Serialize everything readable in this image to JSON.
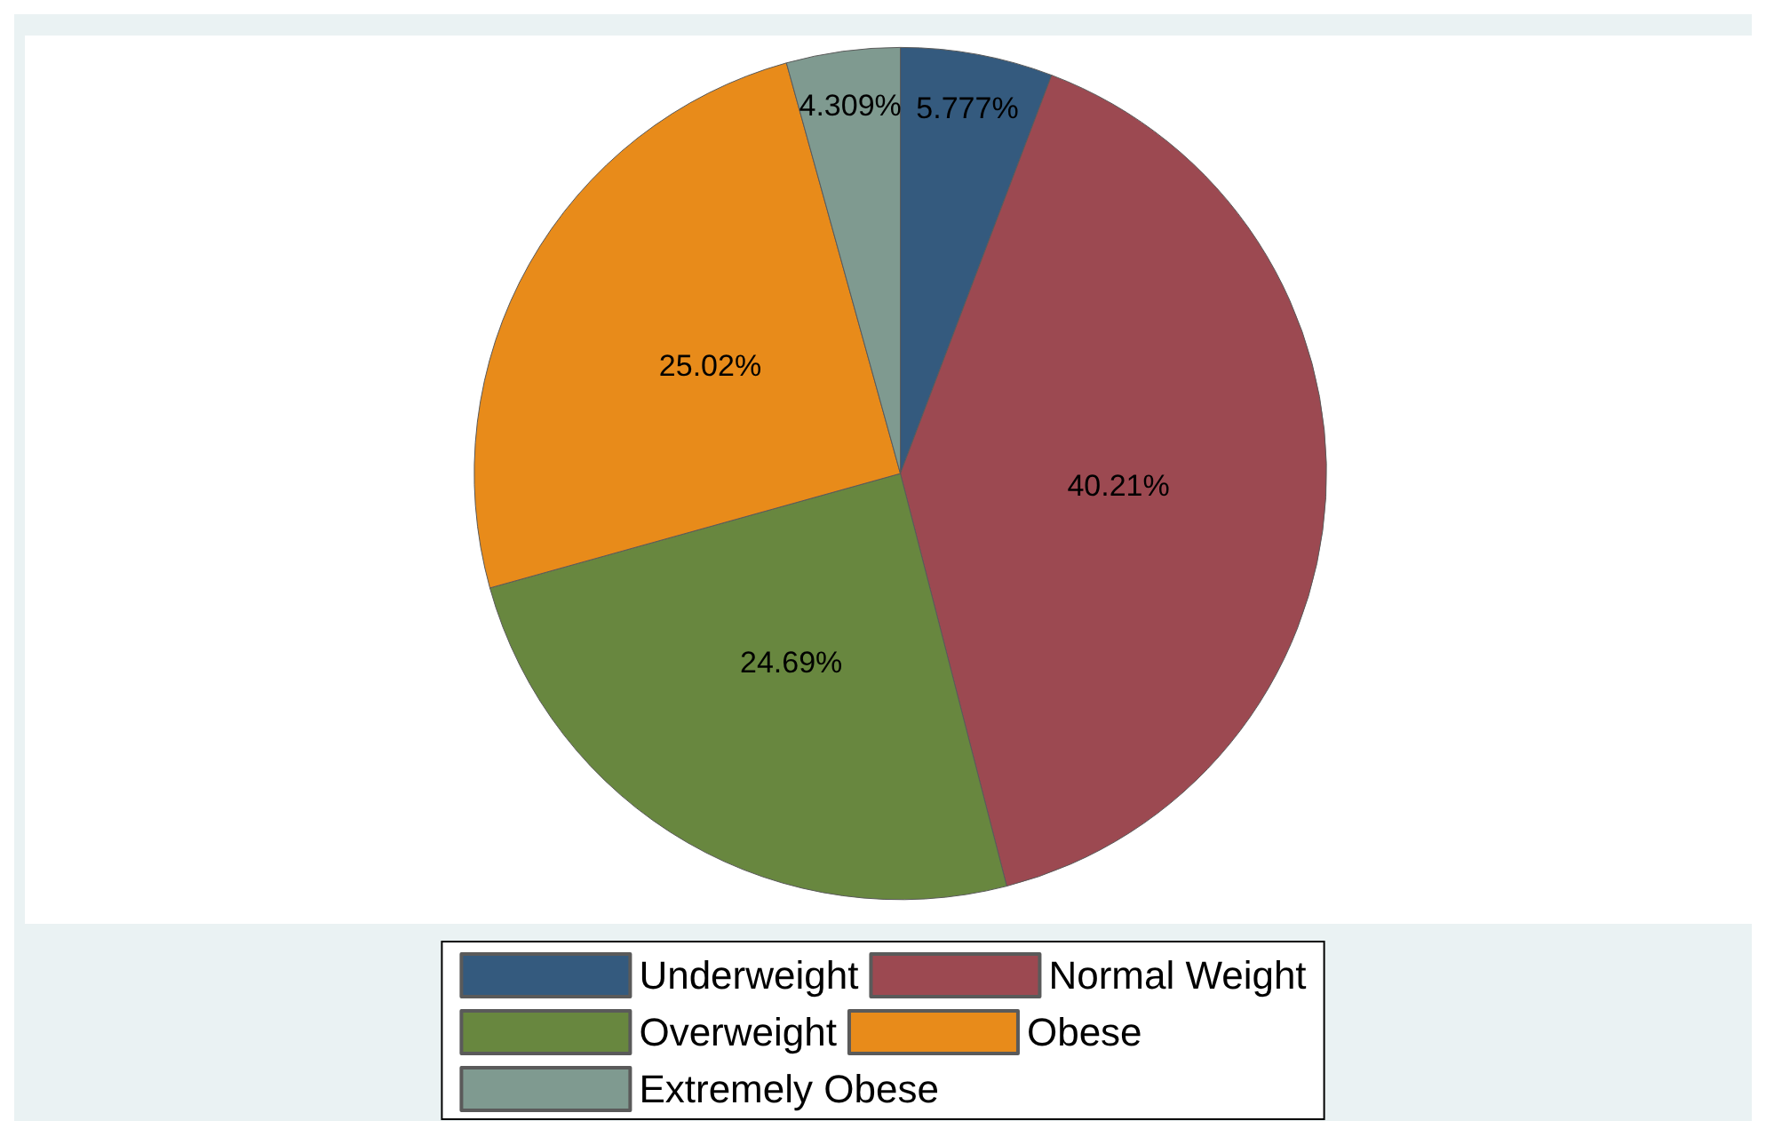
{
  "chart_data": {
    "type": "pie",
    "categories": [
      "Underweight",
      "Normal Weight",
      "Overweight",
      "Obese",
      "Extremely Obese"
    ],
    "values": [
      5.777,
      40.21,
      24.69,
      25.02,
      4.309
    ],
    "colors": [
      "#345a7e",
      "#9c4951",
      "#68873f",
      "#e88b1a",
      "#7f9a90"
    ],
    "value_labels": [
      "5.777%",
      "40.21%",
      "24.69%",
      "25.02%",
      "4.309%"
    ],
    "legend": "bottom"
  }
}
